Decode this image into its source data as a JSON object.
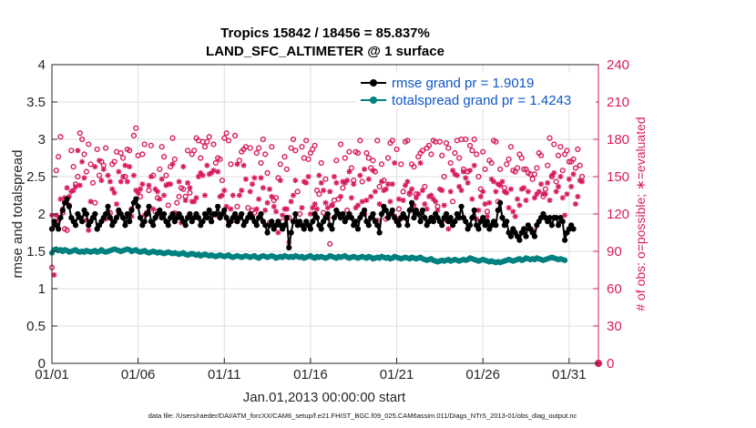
{
  "chart_data": {
    "type": "line",
    "title": "Tropics 15842 / 18456 = 85.837%",
    "subtitle": "LAND_SFC_ALTIMETER @ 1 surface",
    "xlabel": "Jan.01,2013 00:00:00 start",
    "ylabel": "rmse and totalspread",
    "y2label": "# of obs: o=possible; ∗=evaluated",
    "xlim": [
      0,
      31.7
    ],
    "ylim": [
      0,
      4
    ],
    "y2lim": [
      0,
      240
    ],
    "x_tick_values": [
      0,
      5,
      10,
      15,
      20,
      25,
      30
    ],
    "x_tick_labels": [
      "01/01",
      "01/06",
      "01/11",
      "01/16",
      "01/21",
      "01/26",
      "01/31"
    ],
    "y_ticks": [
      "0",
      "0.5",
      "1",
      "1.5",
      "2",
      "2.5",
      "3",
      "3.5",
      "4"
    ],
    "y2_ticks": [
      "0",
      "30",
      "60",
      "90",
      "120",
      "150",
      "180",
      "210",
      "240"
    ],
    "legend_placement": "top-right",
    "footnote": "data file: /Users/raeder/DAI/ATM_forcXX/CAM6_setup/f.e21.FHIST_BGC.f09_025.CAM6assim.011/Diags_NTrS_2013-01/obs_diag_output.nc",
    "x_step_days": 0.125,
    "series": [
      {
        "name": "rmse grand pr = 1.9019",
        "color": "#000000",
        "axis": "left",
        "values": [
          1.8,
          1.9,
          1.85,
          1.8,
          1.95,
          2.05,
          2.15,
          2.2,
          2.1,
          1.95,
          1.9,
          1.85,
          2.0,
          1.95,
          1.9,
          2.05,
          2.0,
          1.85,
          1.9,
          1.95,
          2.0,
          1.8,
          1.85,
          1.9,
          1.95,
          2.0,
          2.1,
          1.95,
          1.85,
          1.9,
          1.95,
          2.05,
          2.0,
          1.95,
          1.85,
          2.0,
          1.9,
          2.05,
          2.15,
          2.2,
          2.1,
          1.95,
          1.85,
          1.9,
          2.0,
          2.1,
          1.9,
          1.85,
          1.95,
          2.0,
          2.05,
          1.95,
          2.0,
          1.9,
          1.85,
          1.95,
          2.0,
          1.9,
          1.95,
          2.0,
          1.95,
          1.9,
          1.85,
          1.95,
          2.0,
          1.9,
          1.95,
          2.0,
          1.95,
          1.85,
          1.9,
          2.0,
          1.95,
          2.05,
          1.9,
          2.0,
          2.0,
          2.1,
          1.95,
          2.0,
          2.05,
          1.95,
          1.85,
          1.9,
          1.95,
          2.0,
          1.9,
          1.95,
          2.0,
          1.85,
          1.9,
          1.95,
          2.0,
          1.95,
          1.9,
          1.85,
          1.95,
          2.0,
          1.9,
          1.85,
          1.75,
          1.85,
          1.9,
          1.8,
          1.85,
          1.9,
          1.85,
          1.8,
          1.85,
          1.95,
          1.55,
          1.75,
          1.9,
          2.0,
          1.85,
          1.9,
          1.85,
          1.8,
          1.9,
          1.85,
          1.8,
          1.9,
          2.0,
          1.95,
          1.85,
          1.8,
          1.9,
          1.95,
          2.0,
          1.85,
          1.8,
          1.95,
          2.05,
          2.0,
          1.95,
          2.0,
          1.9,
          1.95,
          2.0,
          1.95,
          1.85,
          1.9,
          1.8,
          1.95,
          2.0,
          2.05,
          1.9,
          1.85,
          1.95,
          2.0,
          1.9,
          1.85,
          1.75,
          2.0,
          2.1,
          2.05,
          1.95,
          2.0,
          2.05,
          1.95,
          1.9,
          1.85,
          1.95,
          2.0,
          1.95,
          1.85,
          2.05,
          2.15,
          1.95,
          2.05,
          2.0,
          1.9,
          2.05,
          1.95,
          1.85,
          1.9,
          1.95,
          1.9,
          2.0,
          1.95,
          1.9,
          1.85,
          1.95,
          2.0,
          1.9,
          1.95,
          1.85,
          1.9,
          2.0,
          1.95,
          2.1,
          1.95,
          1.9,
          1.8,
          1.85,
          1.95,
          2.05,
          1.85,
          1.8,
          1.9,
          1.95,
          1.85,
          1.9,
          1.8,
          1.85,
          1.9,
          1.85,
          2.05,
          2.15,
          1.95,
          1.85,
          1.9,
          1.75,
          1.7,
          1.8,
          1.75,
          1.7,
          1.65,
          1.75,
          1.8,
          1.7,
          1.85,
          1.8,
          1.75,
          1.7,
          1.85,
          1.9,
          1.95,
          2.0,
          1.95,
          1.9,
          1.95,
          1.85,
          1.95,
          1.95,
          1.85,
          1.95,
          1.9,
          1.65,
          1.75,
          1.8,
          1.85,
          1.8
        ]
      },
      {
        "name": "totalspread grand pr = 1.4243",
        "color": "#00807f",
        "axis": "left",
        "values": [
          1.48,
          1.52,
          1.53,
          1.51,
          1.52,
          1.5,
          1.52,
          1.51,
          1.49,
          1.5,
          1.51,
          1.52,
          1.5,
          1.49,
          1.5,
          1.49,
          1.51,
          1.5,
          1.49,
          1.5,
          1.51,
          1.49,
          1.5,
          1.52,
          1.5,
          1.49,
          1.5,
          1.51,
          1.52,
          1.53,
          1.52,
          1.51,
          1.5,
          1.51,
          1.52,
          1.53,
          1.52,
          1.5,
          1.51,
          1.52,
          1.5,
          1.49,
          1.5,
          1.51,
          1.49,
          1.48,
          1.49,
          1.5,
          1.49,
          1.48,
          1.49,
          1.48,
          1.47,
          1.48,
          1.49,
          1.48,
          1.47,
          1.48,
          1.47,
          1.46,
          1.47,
          1.48,
          1.46,
          1.45,
          1.46,
          1.47,
          1.46,
          1.45,
          1.46,
          1.44,
          1.45,
          1.46,
          1.45,
          1.44,
          1.45,
          1.44,
          1.43,
          1.44,
          1.45,
          1.44,
          1.43,
          1.44,
          1.45,
          1.43,
          1.42,
          1.43,
          1.44,
          1.43,
          1.42,
          1.43,
          1.44,
          1.43,
          1.42,
          1.43,
          1.44,
          1.42,
          1.41,
          1.43,
          1.44,
          1.43,
          1.42,
          1.43,
          1.44,
          1.43,
          1.41,
          1.42,
          1.43,
          1.42,
          1.44,
          1.43,
          1.42,
          1.43,
          1.42,
          1.44,
          1.43,
          1.42,
          1.43,
          1.41,
          1.42,
          1.43,
          1.44,
          1.42,
          1.41,
          1.43,
          1.42,
          1.43,
          1.42,
          1.41,
          1.42,
          1.44,
          1.43,
          1.42,
          1.41,
          1.43,
          1.42,
          1.43,
          1.44,
          1.42,
          1.41,
          1.42,
          1.43,
          1.42,
          1.41,
          1.42,
          1.43,
          1.42,
          1.41,
          1.43,
          1.42,
          1.4,
          1.41,
          1.42,
          1.41,
          1.43,
          1.42,
          1.41,
          1.42,
          1.4,
          1.41,
          1.43,
          1.42,
          1.41,
          1.4,
          1.41,
          1.42,
          1.41,
          1.4,
          1.42,
          1.41,
          1.4,
          1.41,
          1.42,
          1.4,
          1.39,
          1.38,
          1.39,
          1.4,
          1.38,
          1.37,
          1.36,
          1.37,
          1.38,
          1.37,
          1.38,
          1.39,
          1.37,
          1.38,
          1.39,
          1.38,
          1.37,
          1.38,
          1.39,
          1.38,
          1.39,
          1.41,
          1.4,
          1.39,
          1.38,
          1.37,
          1.38,
          1.39,
          1.38,
          1.37,
          1.36,
          1.37,
          1.36,
          1.35,
          1.36,
          1.35,
          1.36,
          1.37,
          1.38,
          1.39,
          1.38,
          1.37,
          1.38,
          1.39,
          1.4,
          1.38,
          1.39,
          1.41,
          1.4,
          1.39,
          1.4,
          1.39,
          1.41,
          1.4,
          1.39,
          1.38,
          1.39,
          1.4,
          1.41,
          1.42,
          1.41,
          1.4,
          1.39,
          1.4,
          1.39,
          1.38
        ]
      },
      {
        "name": "possible obs",
        "color": "#d81b60",
        "axis": "right",
        "marker": "circle",
        "values": [
          77,
          113,
          155,
          166,
          182,
          121,
          108,
          107,
          127,
          171,
          158,
          144,
          150,
          185,
          180,
          168,
          154,
          176,
          160,
          145,
          129,
          172,
          151,
          162,
          159,
          173,
          121,
          121,
          160,
          162,
          170,
          122,
          169,
          165,
          150,
          172,
          171,
          124,
          183,
          189,
          167,
          134,
          168,
          176,
          121,
          139,
          175,
          151,
          122,
          133,
          156,
          174,
          166,
          151,
          127,
          158,
          181,
          164,
          129,
          134,
          141,
          140,
          134,
          171,
          137,
          168,
          171,
          181,
          179,
          165,
          178,
          174,
          178,
          182,
          114,
          176,
          161,
          165,
          164,
          147,
          181,
          185,
          179,
          160,
          115,
          183,
          126,
          163,
          170,
          172,
          174,
          125,
          173,
          123,
          121,
          169,
          173,
          161,
          180,
          168,
          153,
          113,
          174,
          131,
          133,
          149,
          160,
          114,
          166,
          156,
          117,
          173,
          180,
          171,
          138,
          120,
          174,
          165,
          179,
          164,
          169,
          172,
          175,
          139,
          136,
          161,
          121,
          148,
          117,
          96,
          127,
          131,
          163,
          132,
          176,
          141,
          165,
          123,
          170,
          157,
          147,
          170,
          169,
          179,
          146,
          120,
          169,
          165,
          157,
          163,
          154,
          179,
          142,
          160,
          147,
          116,
          165,
          177,
          179,
          118,
          172,
          124,
          160,
          138,
          178,
          179,
          136,
          160,
          158,
          136,
          166,
          169,
          171,
          142,
          173,
          175,
          168,
          179,
          178,
          126,
          178,
          167,
          150,
          177,
          173,
          161,
          130,
          169,
          179,
          165,
          180,
          156,
          180,
          154,
          175,
          171,
          180,
          168,
          150,
          140,
          170,
          156,
          122,
          163,
          161,
          179,
          178,
          130,
          156,
          117,
          141,
          160,
          164,
          174,
          155,
          154,
          157,
          168,
          165,
          156,
          156,
          153,
          152,
          148,
          152,
          157,
          169,
          167,
          134,
          140,
          159,
          181,
          150,
          176,
          146,
          167,
          174,
          155,
          168,
          171,
          162,
          162,
          164,
          157,
          172,
          159,
          150
        ]
      },
      {
        "name": "evaluated obs",
        "color": "#d81b60",
        "axis": "right",
        "marker": "asterisk",
        "values": [
          119,
          71,
          119,
          115,
          132,
          124,
          133,
          141,
          134,
          138,
          139,
          142,
          171,
          143,
          162,
          149,
          115,
          107,
          130,
          117,
          158,
          108,
          163,
          147,
          156,
          116,
          151,
          146,
          140,
          137,
          128,
          154,
          146,
          150,
          159,
          146,
          158,
          118,
          151,
          139,
          137,
          140,
          144,
          119,
          120,
          143,
          150,
          124,
          140,
          138,
          132,
          148,
          135,
          143,
          144,
          144,
          160,
          121,
          120,
          146,
          113,
          158,
          131,
          145,
          141,
          130,
          130,
          133,
          150,
          153,
          151,
          135,
          159,
          152,
          153,
          155,
          119,
          154,
          134,
          135,
          139,
          126,
          114,
          124,
          135,
          119,
          160,
          135,
          139,
          159,
          148,
          117,
          138,
          144,
          149,
          124,
          132,
          149,
          141,
          123,
          129,
          140,
          134,
          126,
          122,
          105,
          147,
          119,
          124,
          124,
          97,
          130,
          135,
          147,
          112,
          112,
          125,
          146,
          145,
          150,
          120,
          125,
          128,
          124,
          151,
          145,
          139,
          129,
          125,
          138,
          127,
          150,
          145,
          119,
          134,
          146,
          145,
          147,
          154,
          133,
          144,
          125,
          127,
          151,
          130,
          156,
          131,
          148,
          134,
          155,
          138,
          115,
          128,
          146,
          139,
          140,
          144,
          130,
          144,
          161,
          116,
          132,
          116,
          131,
          143,
          146,
          137,
          140,
          127,
          133,
          136,
          161,
          139,
          128,
          124,
          134,
          135,
          132,
          130,
          123,
          140,
          139,
          127,
          115,
          108,
          138,
          155,
          152,
          151,
          142,
          139,
          154,
          149,
          145,
          155,
          132,
          159,
          116,
          123,
          134,
          138,
          128,
          118,
          129,
          148,
          146,
          138,
          144,
          143,
          146,
          138,
          137,
          125,
          140,
          122,
          118,
          132,
          127,
          140,
          141,
          131,
          138,
          108,
          107,
          133,
          136,
          138,
          144,
          136,
          136,
          145,
          131,
          151,
          153,
          138,
          142,
          150,
          133,
          119,
          136,
          148,
          142,
          152,
          128,
          134,
          147,
          146
        ]
      }
    ]
  }
}
